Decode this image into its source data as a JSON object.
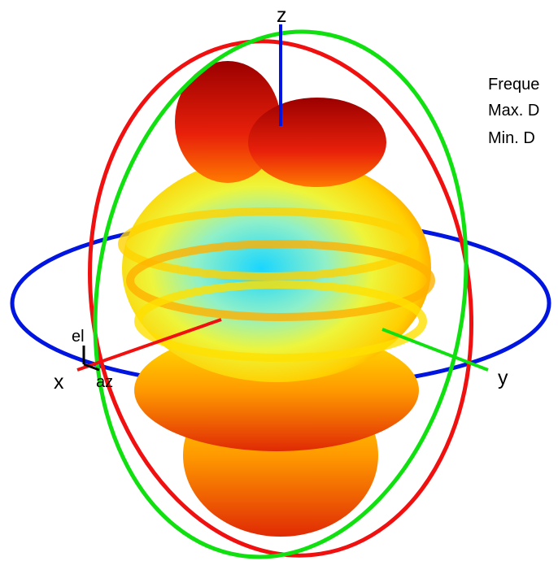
{
  "axes": {
    "z": "z",
    "x": "x",
    "y": "y",
    "el": "el",
    "az": "az"
  },
  "info": [
    "Freque",
    "Max. D",
    "Min. D"
  ]
}
